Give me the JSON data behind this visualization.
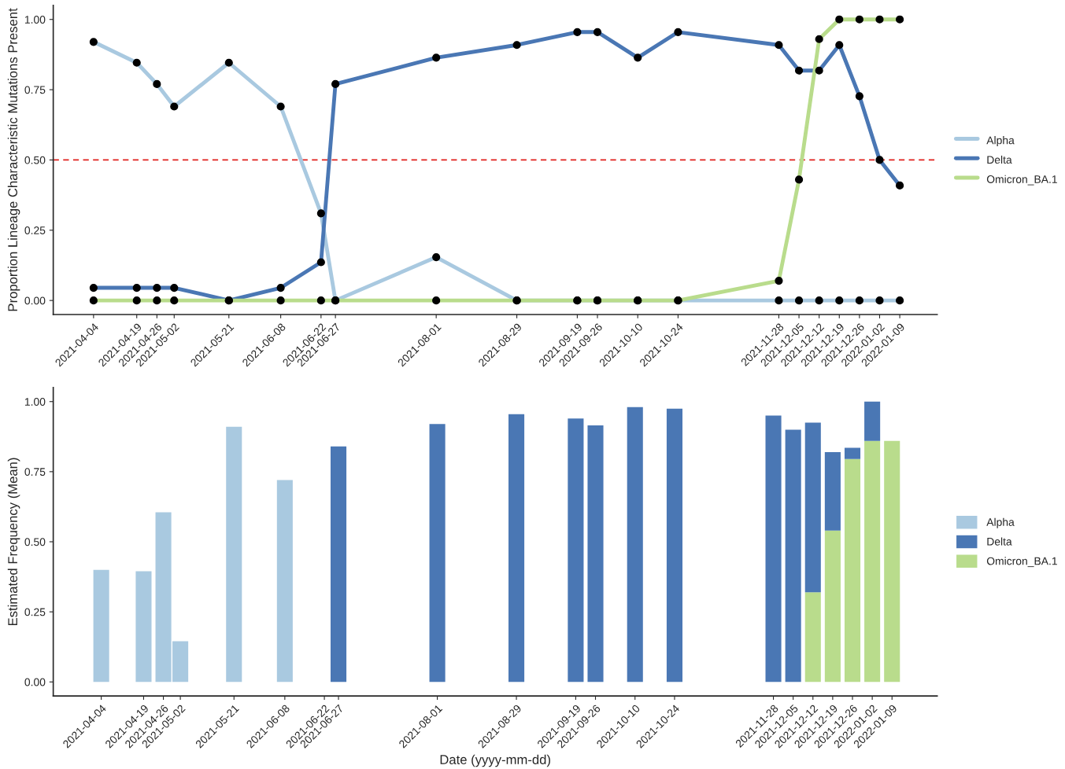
{
  "chart_data": [
    {
      "type": "line",
      "ylabel": "Proportion Lineage Characteristic Mutations Present",
      "x": [
        "2021-04-04",
        "2021-04-19",
        "2021-04-26",
        "2021-05-02",
        "2021-05-21",
        "2021-06-08",
        "2021-06-22",
        "2021-06-27",
        "2021-08-01",
        "2021-08-29",
        "2021-09-19",
        "2021-09-26",
        "2021-10-10",
        "2021-10-24",
        "2021-11-28",
        "2021-12-05",
        "2021-12-12",
        "2021-12-19",
        "2021-12-26",
        "2022-01-02",
        "2022-01-09"
      ],
      "series": [
        {
          "name": "Alpha",
          "color": "#a9c9e0",
          "values": [
            0.92,
            0.846,
            0.77,
            0.69,
            0.846,
            0.69,
            0.31,
            0,
            0.154,
            0,
            0,
            0,
            0,
            0,
            0,
            0,
            0,
            0,
            0,
            0,
            0
          ]
        },
        {
          "name": "Delta",
          "color": "#4a77b4",
          "values": [
            0.045,
            0.045,
            0.045,
            0.045,
            0,
            0.045,
            0.136,
            0.77,
            0.864,
            0.909,
            0.955,
            0.955,
            0.864,
            0.955,
            0.909,
            0.818,
            0.818,
            0.909,
            0.727,
            0.5,
            0.409
          ]
        },
        {
          "name": "Omicron_BA.1",
          "color": "#b9dc8c",
          "values": [
            0,
            0,
            0,
            0,
            0,
            0,
            0,
            0,
            0,
            0,
            0,
            0,
            0,
            0,
            0.07,
            0.43,
            0.93,
            1,
            1,
            1,
            1
          ]
        }
      ],
      "marker": "circle",
      "line_style": "solid",
      "legend": "right",
      "ref_lines": [
        {
          "axis": "y",
          "value": 0.5,
          "color": "#e0201c",
          "line_style": "dashed"
        }
      ],
      "xlim": [
        "2021-03-21",
        "2022-01-22"
      ],
      "xticks": [
        "2021-04-04",
        "2021-04-19",
        "2021-04-26",
        "2021-05-02",
        "2021-05-21",
        "2021-06-08",
        "2021-06-22",
        "2021-06-27",
        "2021-08-01",
        "2021-08-29",
        "2021-09-19",
        "2021-09-26",
        "2021-10-10",
        "2021-10-24",
        "2021-11-28",
        "2021-12-05",
        "2021-12-12",
        "2021-12-19",
        "2021-12-26",
        "2022-01-02",
        "2022-01-09"
      ],
      "ylim": [
        -0.05,
        1.05
      ],
      "yticks": [
        {
          "value": 0,
          "label": "0.00"
        },
        {
          "value": 0.25,
          "label": "0.25"
        },
        {
          "value": 0.5,
          "label": "0.50"
        },
        {
          "value": 0.75,
          "label": "0.75"
        },
        {
          "value": 1,
          "label": "1.00"
        }
      ],
      "grid": false
    },
    {
      "type": "bar",
      "stacked": true,
      "ylabel": "Estimated Frequency (Mean)",
      "xlabel": "Date (yyyy-mm-dd)",
      "x": [
        "2021-04-04",
        "2021-04-19",
        "2021-04-26",
        "2021-05-02",
        "2021-05-21",
        "2021-06-08",
        "2021-06-22",
        "2021-06-27",
        "2021-08-01",
        "2021-08-29",
        "2021-09-19",
        "2021-09-26",
        "2021-10-10",
        "2021-10-24",
        "2021-11-28",
        "2021-12-05",
        "2021-12-12",
        "2021-12-19",
        "2021-12-26",
        "2022-01-02",
        "2022-01-09"
      ],
      "series": [
        {
          "name": "Omicron_BA.1",
          "color": "#b9dc8c",
          "values": [
            null,
            null,
            null,
            null,
            null,
            null,
            null,
            null,
            null,
            null,
            null,
            null,
            null,
            null,
            null,
            null,
            0.32,
            0.54,
            0.795,
            0.86,
            0.86
          ]
        },
        {
          "name": "Delta",
          "color": "#4a77b4",
          "values": [
            null,
            null,
            null,
            null,
            null,
            null,
            null,
            0.84,
            0.92,
            0.955,
            0.94,
            0.915,
            0.98,
            0.975,
            0.95,
            0.9,
            0.605,
            0.28,
            0.04,
            0.14,
            null
          ]
        },
        {
          "name": "Alpha",
          "color": "#a9c9e0",
          "values": [
            0.4,
            0.395,
            0.605,
            0.145,
            0.91,
            0.72,
            null,
            null,
            null,
            null,
            null,
            null,
            null,
            null,
            null,
            null,
            null,
            null,
            null,
            null,
            null
          ]
        }
      ],
      "legend": "right",
      "xlim": [
        "2021-03-18",
        "2022-01-25"
      ],
      "xticks": [
        "2021-04-04",
        "2021-04-19",
        "2021-04-26",
        "2021-05-02",
        "2021-05-21",
        "2021-06-08",
        "2021-06-22",
        "2021-06-27",
        "2021-08-01",
        "2021-08-29",
        "2021-09-19",
        "2021-09-26",
        "2021-10-10",
        "2021-10-24",
        "2021-11-28",
        "2021-12-05",
        "2021-12-12",
        "2021-12-19",
        "2021-12-26",
        "2022-01-02",
        "2022-01-09"
      ],
      "ylim": [
        -0.05,
        1.05
      ],
      "yticks": [
        {
          "value": 0,
          "label": "0.00"
        },
        {
          "value": 0.25,
          "label": "0.25"
        },
        {
          "value": 0.5,
          "label": "0.50"
        },
        {
          "value": 0.75,
          "label": "0.75"
        },
        {
          "value": 1,
          "label": "1.00"
        }
      ],
      "grid": false
    }
  ]
}
